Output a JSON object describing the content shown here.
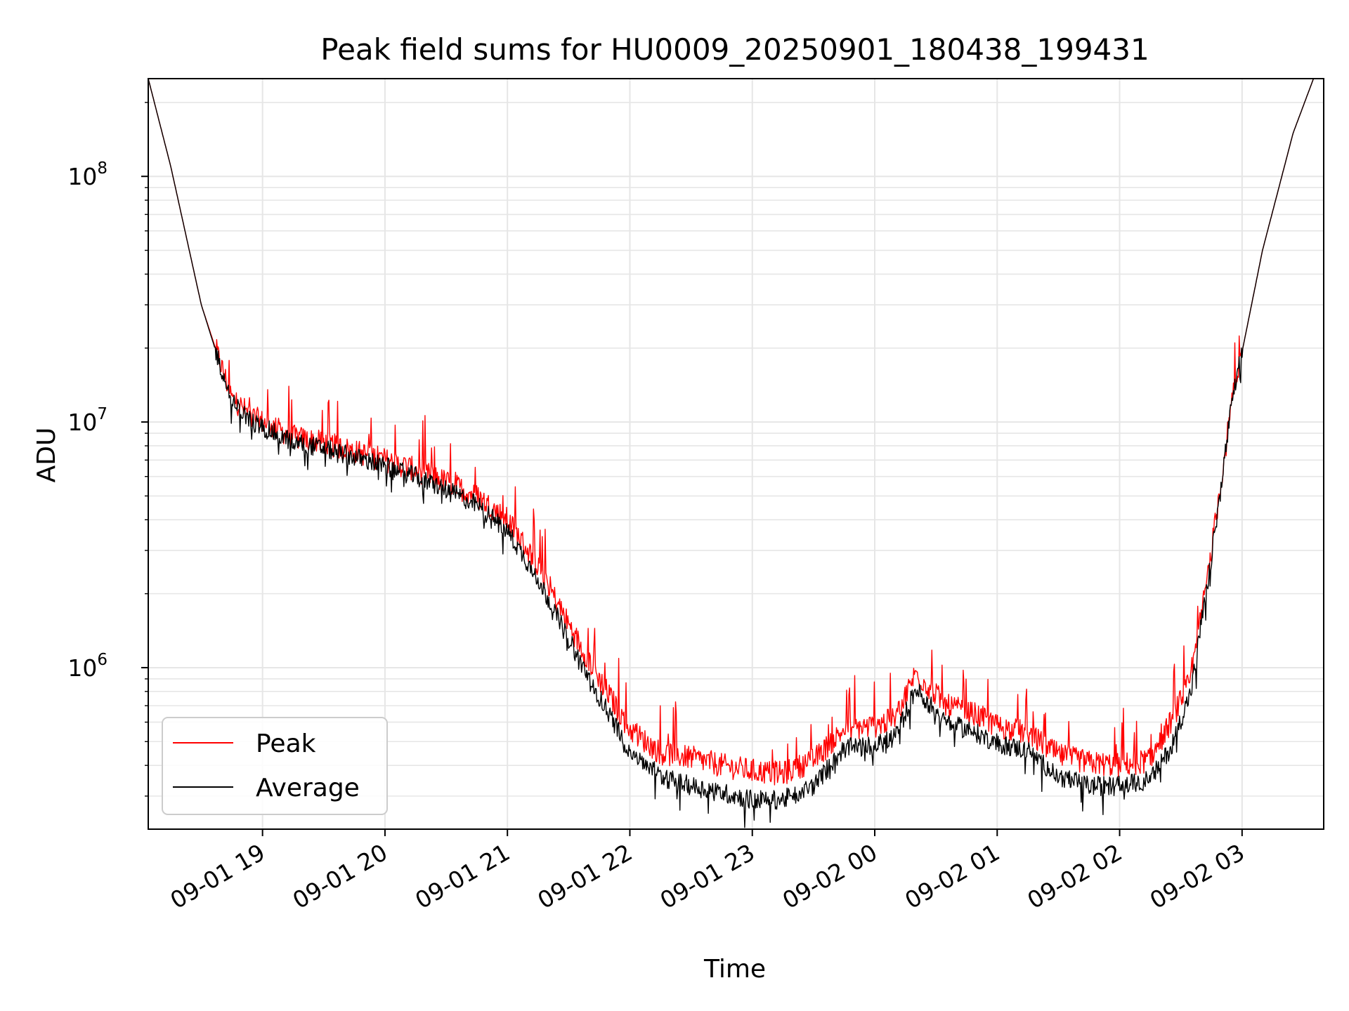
{
  "chart_data": {
    "type": "line",
    "title": "Peak field sums for HU0009_20250901_180438_199431",
    "xlabel": "Time",
    "ylabel": "ADU",
    "yscale": "log",
    "grid": true,
    "legend_position": "lower-left",
    "xlim": [
      "2025-09-01 18:04",
      "2025-09-02 03:40"
    ],
    "ylim": [
      220000,
      250000000
    ],
    "x_ticks": [
      "09-01 19",
      "09-01 20",
      "09-01 21",
      "09-01 22",
      "09-01 23",
      "09-02 00",
      "09-02 01",
      "09-02 02",
      "09-02 03"
    ],
    "y_ticks": [
      {
        "value": 1000000,
        "base": "10",
        "exp": "6"
      },
      {
        "value": 10000000,
        "base": "10",
        "exp": "7"
      },
      {
        "value": 100000000,
        "base": "10",
        "exp": "8"
      }
    ],
    "series": [
      {
        "name": "Peak",
        "color": "#ff0000",
        "x": [
          "2025-09-01 18:04",
          "2025-09-01 18:15",
          "2025-09-01 18:30",
          "2025-09-01 18:45",
          "2025-09-01 18:55",
          "2025-09-01 19:00",
          "2025-09-01 19:15",
          "2025-09-01 19:30",
          "2025-09-01 19:45",
          "2025-09-01 20:00",
          "2025-09-01 20:15",
          "2025-09-01 20:30",
          "2025-09-01 20:45",
          "2025-09-01 21:00",
          "2025-09-01 21:15",
          "2025-09-01 21:30",
          "2025-09-01 21:45",
          "2025-09-01 22:00",
          "2025-09-01 22:15",
          "2025-09-01 22:30",
          "2025-09-01 22:45",
          "2025-09-01 23:00",
          "2025-09-01 23:15",
          "2025-09-01 23:30",
          "2025-09-01 23:45",
          "2025-09-02 00:00",
          "2025-09-02 00:10",
          "2025-09-02 00:20",
          "2025-09-02 00:35",
          "2025-09-02 00:50",
          "2025-09-02 01:00",
          "2025-09-02 01:15",
          "2025-09-02 01:30",
          "2025-09-02 01:45",
          "2025-09-02 02:00",
          "2025-09-02 02:15",
          "2025-09-02 02:25",
          "2025-09-02 02:35",
          "2025-09-02 02:45",
          "2025-09-02 02:55",
          "2025-09-02 03:10",
          "2025-09-02 03:25",
          "2025-09-02 03:35"
        ],
        "y": [
          250000000,
          110000000,
          30000000,
          12500000,
          10500000,
          10000000,
          8700000,
          8200000,
          7600000,
          7000000,
          6400000,
          5700000,
          5000000,
          4000000,
          2600000,
          1500000,
          900000,
          560000,
          450000,
          430000,
          400000,
          380000,
          370000,
          420000,
          560000,
          580000,
          620000,
          950000,
          700000,
          640000,
          580000,
          540000,
          440000,
          410000,
          400000,
          420000,
          600000,
          900000,
          3000000,
          12000000,
          50000000,
          150000000,
          250000000
        ]
      },
      {
        "name": "Average",
        "color": "#000000",
        "x": [
          "2025-09-01 18:04",
          "2025-09-01 18:15",
          "2025-09-01 18:30",
          "2025-09-01 18:45",
          "2025-09-01 18:55",
          "2025-09-01 19:00",
          "2025-09-01 19:15",
          "2025-09-01 19:30",
          "2025-09-01 19:45",
          "2025-09-01 20:00",
          "2025-09-01 20:15",
          "2025-09-01 20:30",
          "2025-09-01 20:45",
          "2025-09-01 21:00",
          "2025-09-01 21:15",
          "2025-09-01 21:30",
          "2025-09-01 21:45",
          "2025-09-01 22:00",
          "2025-09-01 22:15",
          "2025-09-01 22:30",
          "2025-09-01 22:45",
          "2025-09-01 23:00",
          "2025-09-01 23:15",
          "2025-09-01 23:30",
          "2025-09-01 23:45",
          "2025-09-02 00:00",
          "2025-09-02 00:10",
          "2025-09-02 00:20",
          "2025-09-02 00:35",
          "2025-09-02 00:50",
          "2025-09-02 01:00",
          "2025-09-02 01:15",
          "2025-09-02 01:30",
          "2025-09-02 01:45",
          "2025-09-02 02:00",
          "2025-09-02 02:15",
          "2025-09-02 02:25",
          "2025-09-02 02:35",
          "2025-09-02 02:45",
          "2025-09-02 02:55",
          "2025-09-02 03:10",
          "2025-09-02 03:25",
          "2025-09-02 03:35"
        ],
        "y": [
          250000000,
          110000000,
          30000000,
          12000000,
          10000000,
          9500000,
          8300000,
          7800000,
          7200000,
          6600000,
          6000000,
          5300000,
          4600000,
          3600000,
          2300000,
          1300000,
          760000,
          460000,
          360000,
          330000,
          310000,
          290000,
          290000,
          330000,
          470000,
          480000,
          520000,
          820000,
          600000,
          540000,
          490000,
          460000,
          360000,
          330000,
          330000,
          350000,
          470000,
          800000,
          2800000,
          12000000,
          50000000,
          150000000,
          250000000
        ]
      }
    ]
  }
}
